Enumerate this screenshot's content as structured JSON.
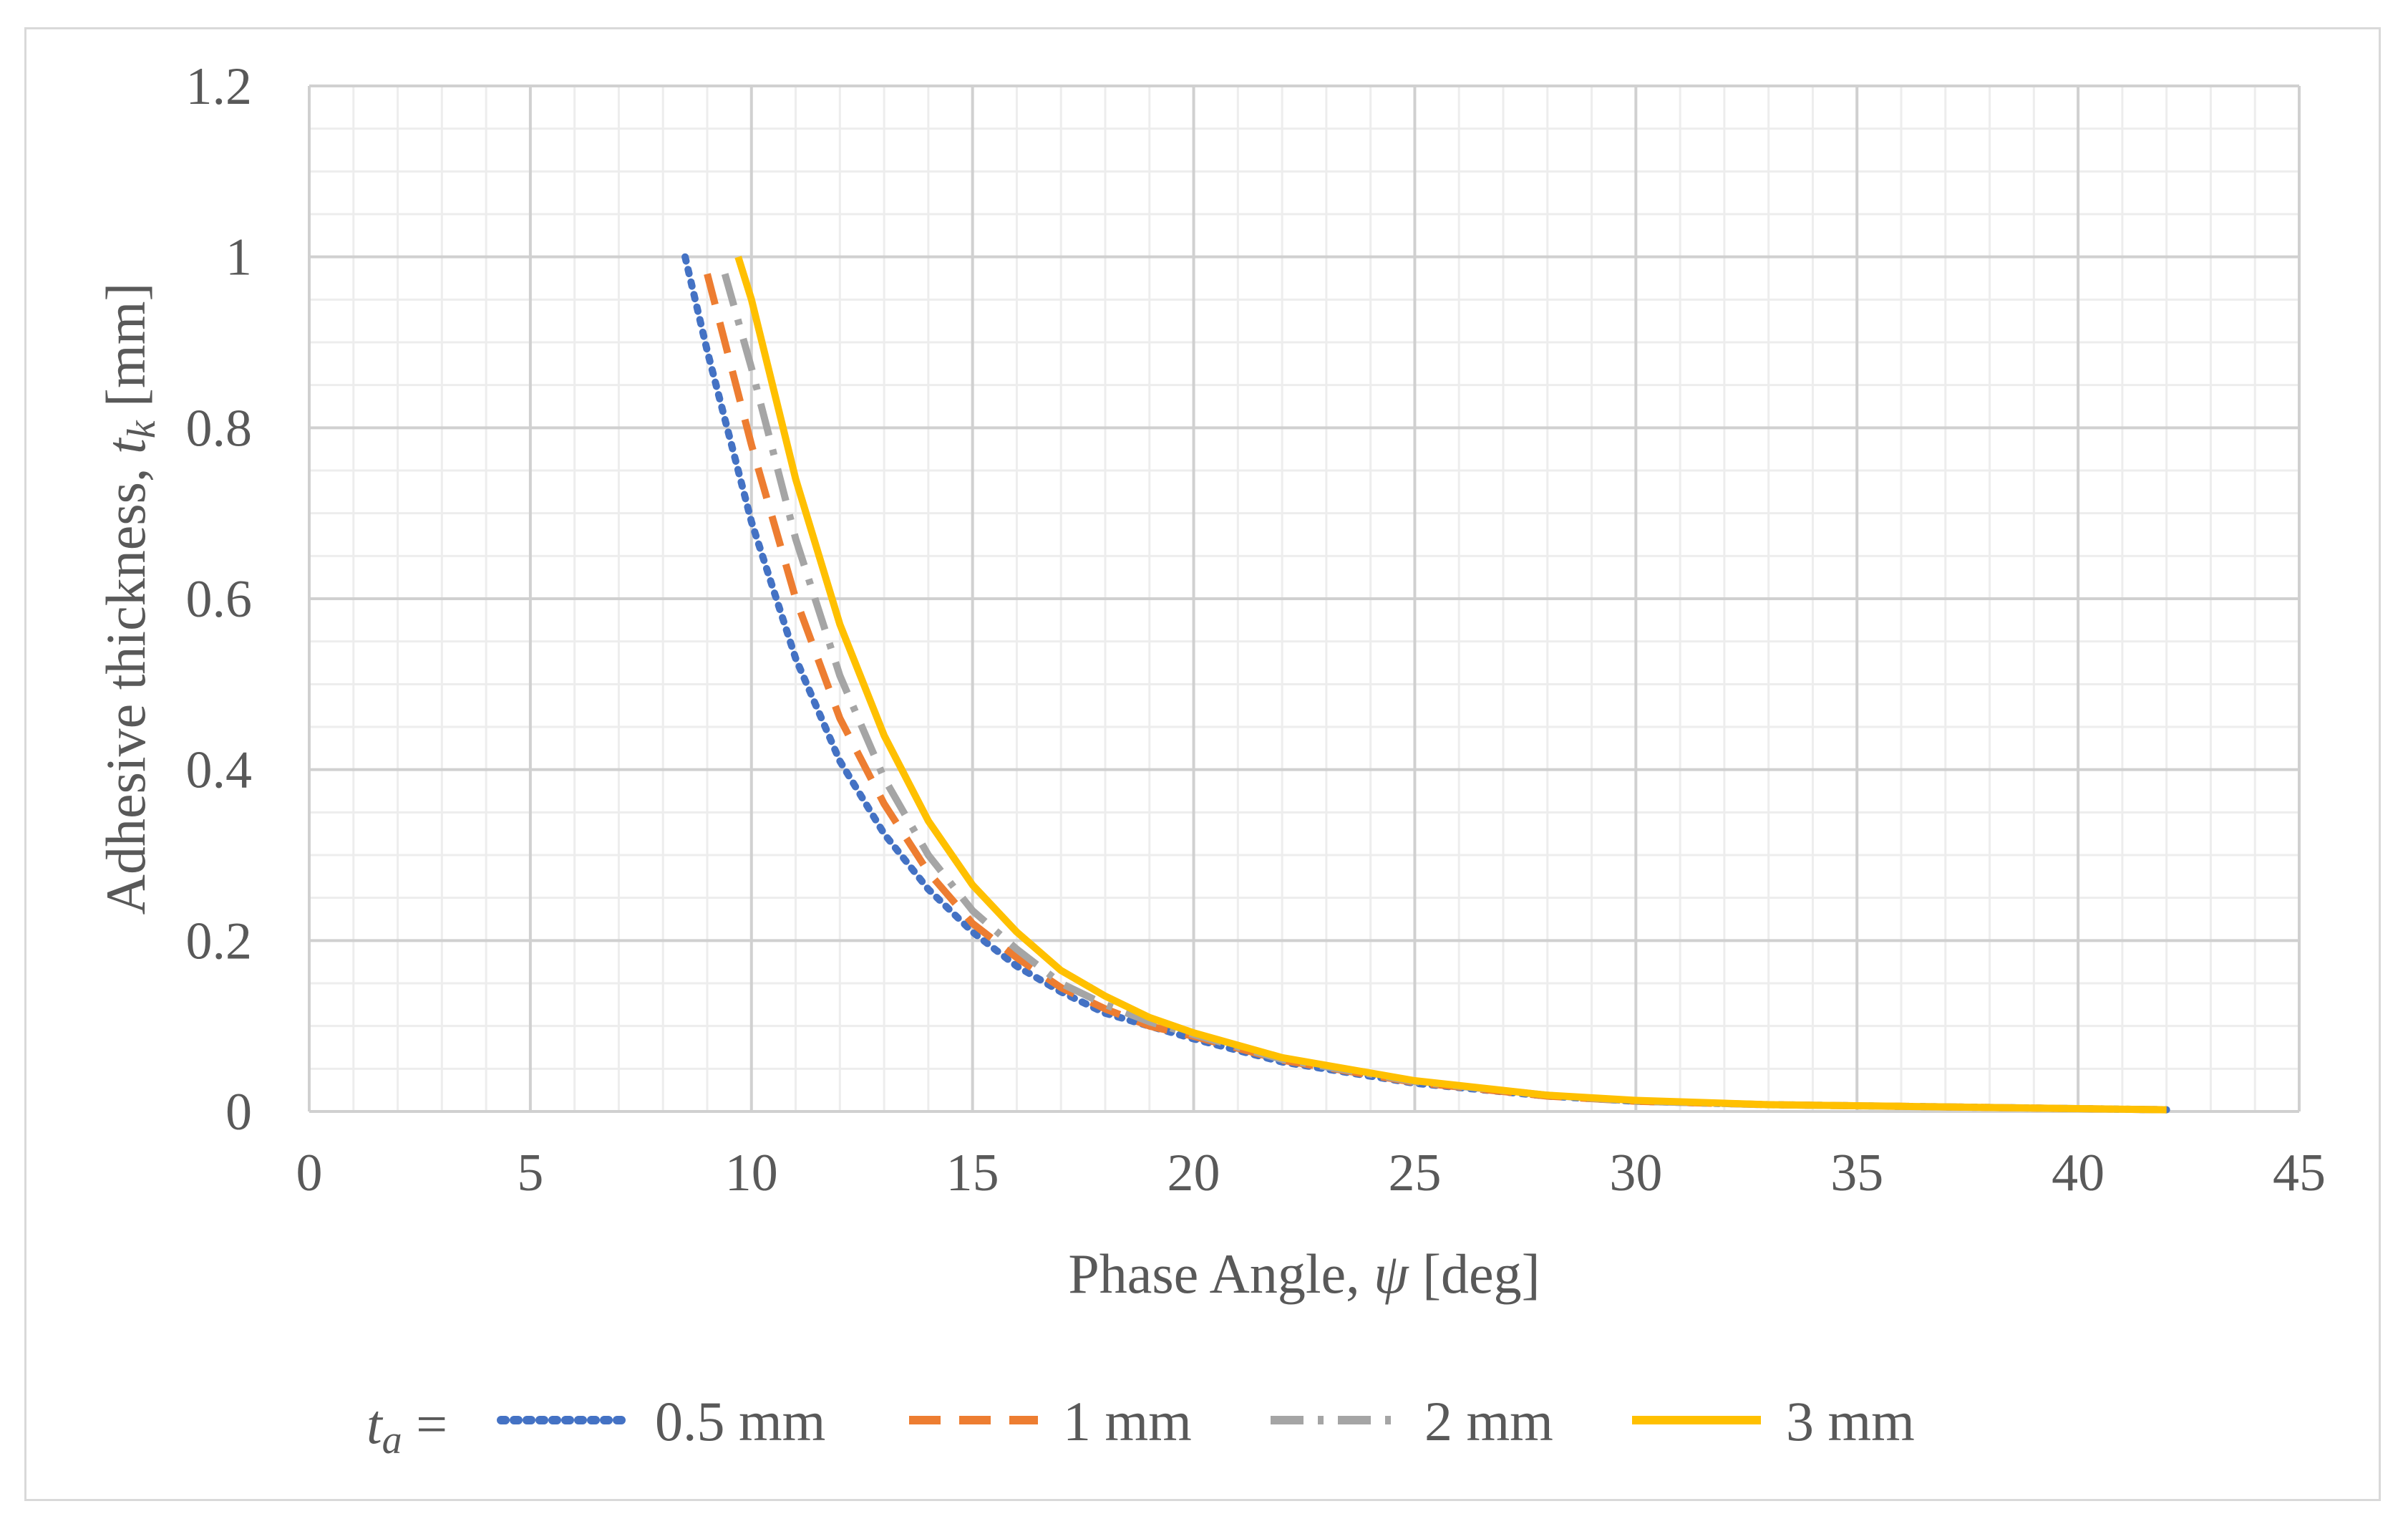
{
  "chart_data": {
    "type": "line",
    "xlabel": "Phase Angle, ψ [deg]",
    "xlabel_parts": {
      "before": "Phase Angle, ",
      "symbol": "ψ",
      "after": " [deg]"
    },
    "ylabel": "Adhesive thickness, tk [mm]",
    "ylabel_parts": {
      "before": "Adhesive thickness, ",
      "symbol": "t",
      "subscript": "k",
      "after": " [mm]"
    },
    "xlim": [
      0,
      45
    ],
    "ylim": [
      0,
      1.2
    ],
    "x_ticks": [
      "0",
      "5",
      "10",
      "15",
      "20",
      "25",
      "30",
      "35",
      "40",
      "45"
    ],
    "y_ticks": [
      "0",
      "0.2",
      "0.4",
      "0.6",
      "0.8",
      "1",
      "1.2"
    ],
    "grid": "major and minor",
    "legend_position": "bottom",
    "legend_prefix": {
      "symbol": "t",
      "subscript": "a",
      "after": " ="
    },
    "series": [
      {
        "name": "0.5 mm",
        "color": "#4472c4",
        "style": "dotted",
        "points": [
          [
            8.5,
            1.0
          ],
          [
            9,
            0.89
          ],
          [
            10,
            0.69
          ],
          [
            11,
            0.53
          ],
          [
            12,
            0.41
          ],
          [
            13,
            0.325
          ],
          [
            14,
            0.26
          ],
          [
            15,
            0.21
          ],
          [
            16,
            0.17
          ],
          [
            17,
            0.14
          ],
          [
            18,
            0.115
          ],
          [
            19,
            0.1
          ],
          [
            20,
            0.085
          ],
          [
            22,
            0.058
          ],
          [
            25,
            0.033
          ],
          [
            28,
            0.018
          ],
          [
            30,
            0.012
          ],
          [
            33,
            0.008
          ],
          [
            36,
            0.006
          ],
          [
            39,
            0.004
          ],
          [
            42,
            0.002
          ]
        ]
      },
      {
        "name": "1 mm",
        "color": "#ed7d31",
        "style": "dashed",
        "points": [
          [
            9,
            0.98
          ],
          [
            10,
            0.78
          ],
          [
            11,
            0.6
          ],
          [
            12,
            0.46
          ],
          [
            13,
            0.36
          ],
          [
            14,
            0.28
          ],
          [
            15,
            0.22
          ],
          [
            16,
            0.18
          ],
          [
            17,
            0.145
          ],
          [
            18,
            0.12
          ],
          [
            19,
            0.1
          ],
          [
            20,
            0.088
          ],
          [
            22,
            0.06
          ],
          [
            25,
            0.034
          ],
          [
            28,
            0.018
          ],
          [
            30,
            0.012
          ],
          [
            33,
            0.008
          ],
          [
            36,
            0.006
          ],
          [
            39,
            0.004
          ],
          [
            42,
            0.002
          ]
        ]
      },
      {
        "name": "2 mm",
        "color": "#a5a5a5",
        "style": "dash-dot",
        "points": [
          [
            9.4,
            0.98
          ],
          [
            10,
            0.87
          ],
          [
            11,
            0.67
          ],
          [
            12,
            0.51
          ],
          [
            13,
            0.39
          ],
          [
            14,
            0.3
          ],
          [
            15,
            0.235
          ],
          [
            16,
            0.19
          ],
          [
            17,
            0.15
          ],
          [
            18,
            0.125
          ],
          [
            19,
            0.105
          ],
          [
            20,
            0.09
          ],
          [
            22,
            0.061
          ],
          [
            25,
            0.035
          ],
          [
            28,
            0.019
          ],
          [
            30,
            0.012
          ],
          [
            33,
            0.008
          ],
          [
            36,
            0.006
          ],
          [
            39,
            0.004
          ],
          [
            42,
            0.002
          ]
        ]
      },
      {
        "name": "3 mm",
        "color": "#ffc000",
        "style": "solid",
        "points": [
          [
            9.7,
            1.0
          ],
          [
            10,
            0.95
          ],
          [
            11,
            0.74
          ],
          [
            12,
            0.57
          ],
          [
            13,
            0.44
          ],
          [
            14,
            0.34
          ],
          [
            15,
            0.265
          ],
          [
            16,
            0.21
          ],
          [
            17,
            0.165
          ],
          [
            18,
            0.135
          ],
          [
            19,
            0.11
          ],
          [
            20,
            0.092
          ],
          [
            22,
            0.063
          ],
          [
            25,
            0.036
          ],
          [
            28,
            0.019
          ],
          [
            30,
            0.013
          ],
          [
            33,
            0.008
          ],
          [
            36,
            0.006
          ],
          [
            39,
            0.004
          ],
          [
            42,
            0.002
          ]
        ]
      }
    ]
  }
}
